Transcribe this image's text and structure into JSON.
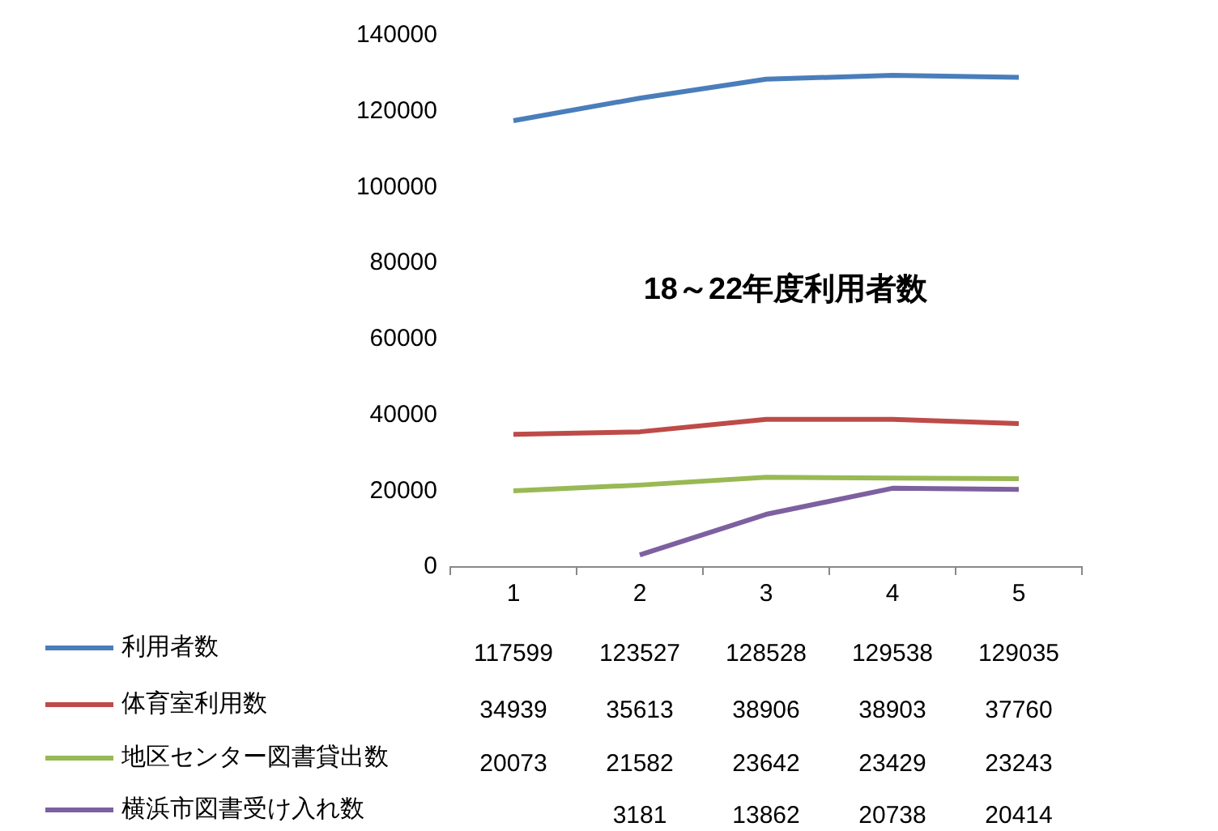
{
  "chart_data": {
    "type": "line",
    "title": "18～22年度利用者数",
    "categories": [
      "1",
      "2",
      "3",
      "4",
      "5"
    ],
    "series": [
      {
        "name": "利用者数",
        "color": "#4a7ebb",
        "values": [
          117599,
          123527,
          128528,
          129538,
          129035
        ]
      },
      {
        "name": "体育室利用数",
        "color": "#be4b48",
        "values": [
          34939,
          35613,
          38906,
          38903,
          37760
        ]
      },
      {
        "name": "地区センター図書貸出数",
        "color": "#98b954",
        "values": [
          20073,
          21582,
          23642,
          23429,
          23243
        ]
      },
      {
        "name": "横浜市図書受け入れ数",
        "color": "#7d60a0",
        "values": [
          null,
          3181,
          13862,
          20738,
          20414
        ]
      }
    ],
    "ylim": [
      0,
      140000
    ],
    "yticks": [
      0,
      20000,
      40000,
      60000,
      80000,
      100000,
      120000,
      140000
    ],
    "grid": false,
    "legend": "bottom",
    "data_labels": true,
    "marker": "none"
  }
}
